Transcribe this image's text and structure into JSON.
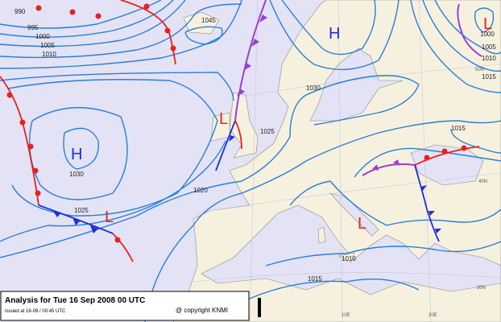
{
  "title": "Analysis for Tue 16 Sep 2008 00 UTC",
  "issued": "Issued at 16-09 / 00:45 UTC",
  "copyright": "@ copyright KNMI",
  "isobar_labels": [
    "990",
    "995",
    "1000",
    "1005",
    "1010",
    "1045",
    "1030",
    "1025",
    "1030",
    "1025",
    "1020",
    "1015",
    "1010",
    "1015",
    "1000",
    "1005",
    "1010",
    "1015"
  ],
  "centers": [
    "H",
    "H",
    "L",
    "L",
    "L",
    "L"
  ],
  "grid_labels": [
    "50N",
    "40N",
    "30N",
    "10E",
    "20E"
  ]
}
